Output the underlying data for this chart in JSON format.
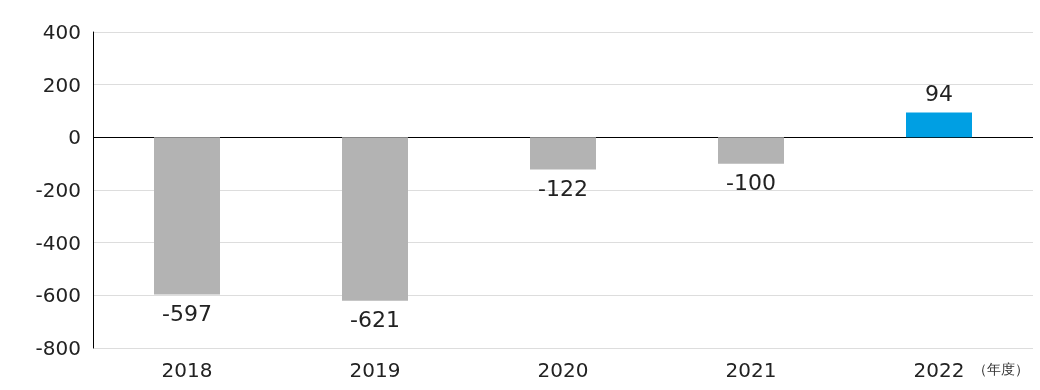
{
  "chart_data": {
    "type": "bar",
    "xlabel": "（年度）",
    "categories": [
      "2018",
      "2019",
      "2020",
      "2021",
      "2022"
    ],
    "values": [
      -597,
      -621,
      -122,
      -100,
      94
    ],
    "colors": [
      "#b3b3b3",
      "#b3b3b3",
      "#b3b3b3",
      "#b3b3b3",
      "#009fe3"
    ],
    "ylim": [
      -800,
      400
    ],
    "yticks": [
      -800,
      -600,
      -400,
      -200,
      0,
      200,
      400
    ],
    "grid": "y",
    "data_labels": true
  }
}
